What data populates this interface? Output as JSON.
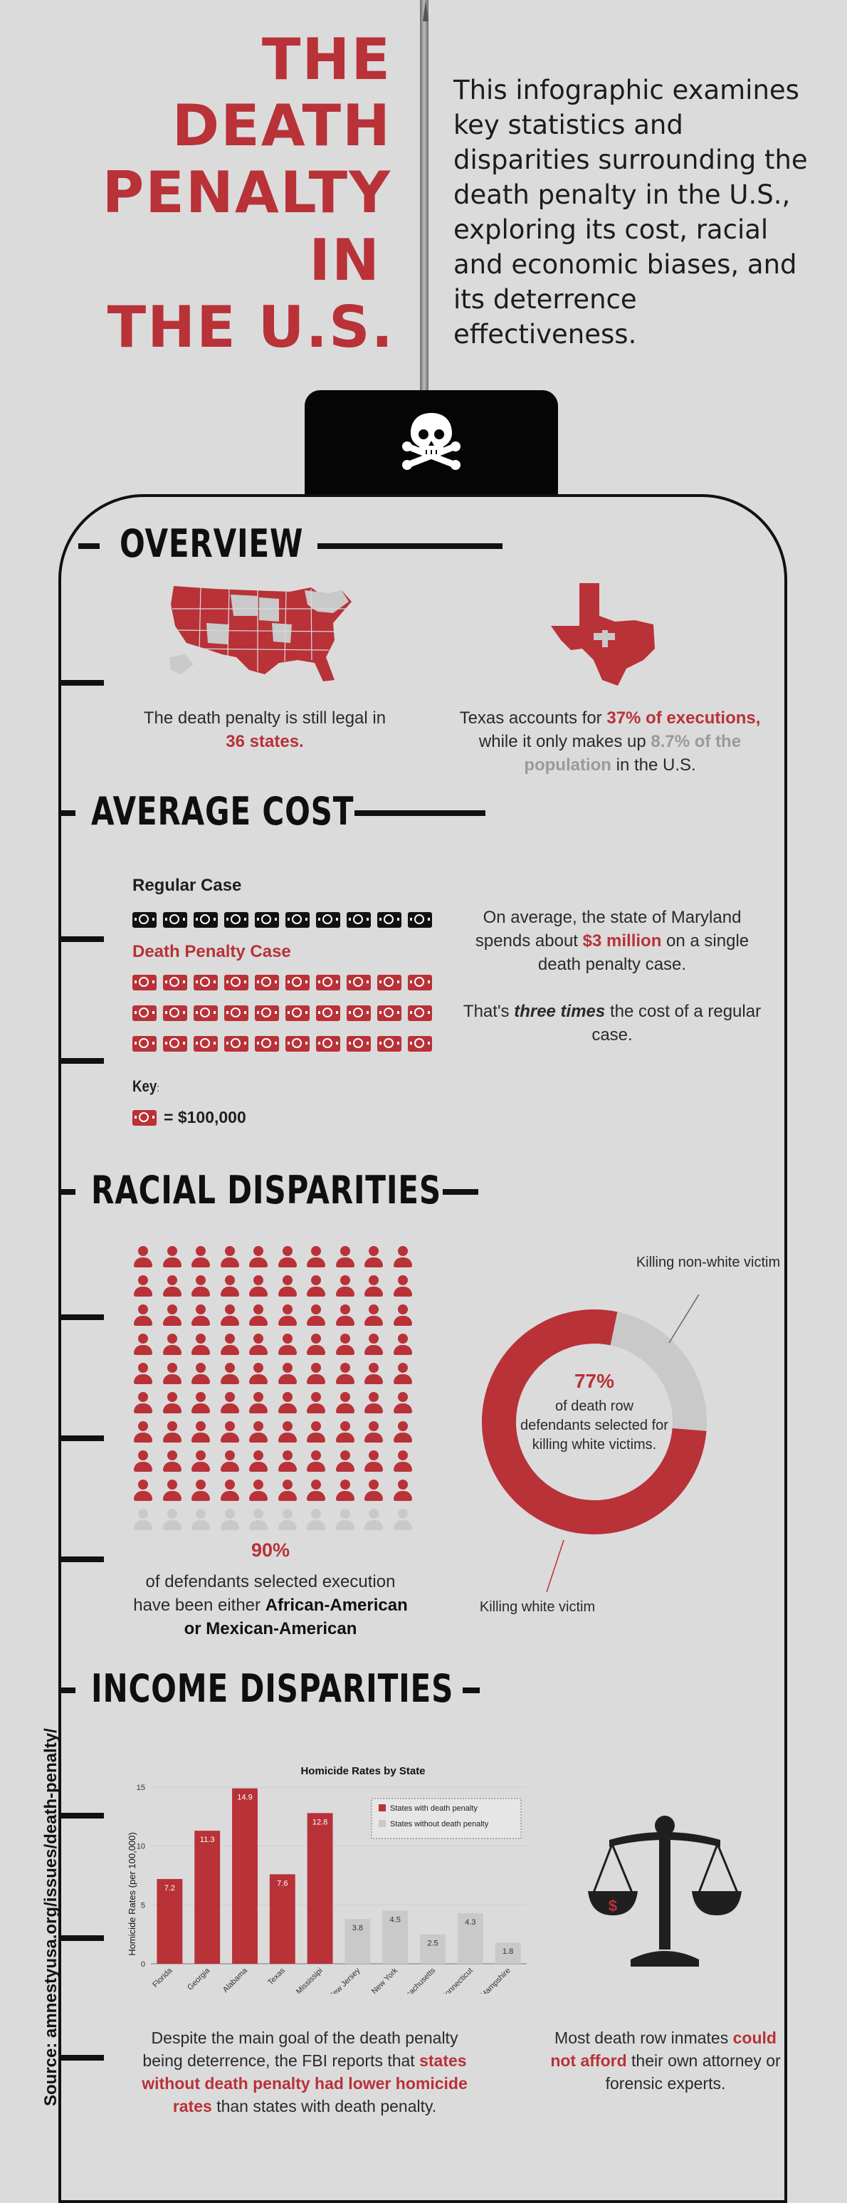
{
  "header": {
    "title_lines": [
      "THE",
      "DEATH",
      "PENALTY",
      "IN",
      "THE U.S."
    ],
    "intro": "This infographic examines key statistics and disparities surrounding the death penalty in the U.S., exploring its cost, racial and economic biases, and its deterrence effectiveness."
  },
  "colors": {
    "accent": "#b83238",
    "muted": "#c9c9c9",
    "background": "#dcdbdb",
    "ink": "#111111"
  },
  "icons": {
    "tag": "skull-crossbones-icon",
    "us_map": "us-map-icon",
    "texas": "texas-map-icon",
    "money": "dollar-bill-icon",
    "person": "person-icon",
    "scales": "scales-of-justice-icon"
  },
  "overview": {
    "title": "OVERVIEW",
    "states": {
      "prefix": "The death penalty is still legal in",
      "highlight": "36 states."
    },
    "texas": {
      "prefix": "Texas accounts for",
      "highlight1": "37% of executions,",
      "middle": "while it only makes up",
      "highlight2": "8.7% of the population",
      "suffix": "in the U.S."
    }
  },
  "cost": {
    "title": "AVERAGE COST",
    "regular_label": "Regular Case",
    "regular_units": 10,
    "death_label": "Death Penalty Case",
    "death_units": 30,
    "key_label": "Key",
    "key_colon": ":",
    "key_value": "= $100,000",
    "maryland": {
      "prefix": "On average, the state of Maryland spends about",
      "highlight": "$3 million",
      "suffix": "on a single death penalty case."
    },
    "times": {
      "prefix": "That's",
      "highlight": "three times",
      "suffix": "the cost of a regular case."
    }
  },
  "racial": {
    "title": "RACIAL DISPARITIES",
    "people_total": 100,
    "people_highlighted": 90,
    "pct": "90%",
    "caption_prefix": "of defendants selected execution have been either",
    "caption_bold": "African-American or Mexican-American",
    "donut_pct": "77%",
    "donut_value": 77,
    "donut_caption": "of death row defendants selected for killing white victims.",
    "label_nonwhite": "Killing non-white victim",
    "label_white": "Killing white victim"
  },
  "income": {
    "title": "INCOME DISPARITIES",
    "deterrence": {
      "prefix": "Despite the main goal of the death penalty being deterrence, the FBI reports that",
      "highlight": "states without death penalty had lower homicide rates",
      "suffix": "than states with death penalty."
    },
    "attorney": {
      "prefix": "Most death row inmates",
      "highlight": "could not afford",
      "suffix": "their own attorney or forensic experts."
    },
    "scale_symbol": "$"
  },
  "chart_data": {
    "type": "bar",
    "title": "Homicide Rates by State",
    "ylabel": "Homicide Rates (per 100,000)",
    "xlabel": "",
    "ylim": [
      0,
      15
    ],
    "yticks": [
      0,
      5,
      10,
      15
    ],
    "grid": true,
    "legend_position": "top-right",
    "categories": [
      "Florida",
      "Georgia",
      "Alabama",
      "Texas",
      "Mississipi",
      "New Jersey",
      "New York",
      "Massachusetts",
      "Connecticut",
      "New Hampshire"
    ],
    "values": [
      7.2,
      11.3,
      14.9,
      7.6,
      12.8,
      3.8,
      4.5,
      2.5,
      4.3,
      1.8
    ],
    "value_labels": [
      "7.2",
      "11.3",
      "14.9",
      "7.6",
      "12.8",
      "3.8",
      "4.5",
      "2.5",
      "4.3",
      "1.8"
    ],
    "groups": [
      "with",
      "with",
      "with",
      "with",
      "with",
      "without",
      "without",
      "without",
      "without",
      "without"
    ],
    "legend": [
      {
        "key": "with",
        "label": "States with death penalty",
        "color": "#b83238"
      },
      {
        "key": "without",
        "label": "States without  death penalty",
        "color": "#c9c9c9"
      }
    ]
  },
  "source": "Source: amnestyusa.org/issues/death-penalty/"
}
